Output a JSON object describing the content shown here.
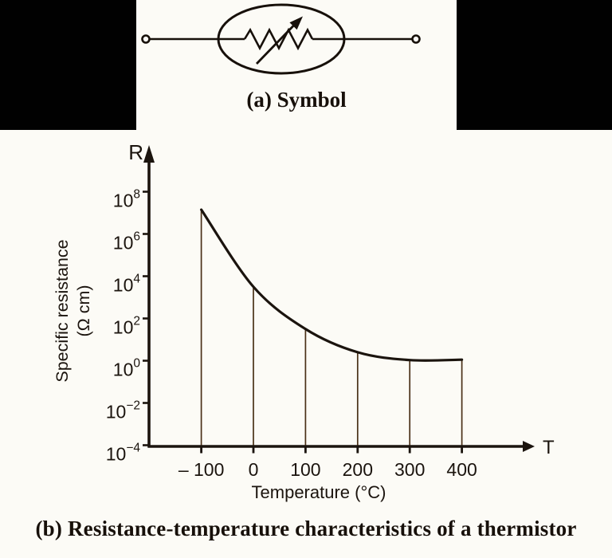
{
  "figure": {
    "background_color": "#fcfbf6",
    "panel_color": "#010101",
    "ink_color": "#1b140e",
    "symbol_caption": "(a) Symbol",
    "chart_caption": "(b) Resistance-temperature characteristics of a thermistor"
  },
  "symbol": {
    "name": "thermistor circuit symbol",
    "parts": [
      "left-terminal",
      "lead-wire",
      "ellipse-outline",
      "resistor-zigzag",
      "diagonal-arrow",
      "right-terminal"
    ]
  },
  "chart_data": {
    "type": "line",
    "scale": "semilog-y",
    "title": "Resistance-temperature characteristics of a thermistor",
    "xlabel": "Temperature (°C)",
    "ylabel": "Specific resistance (Ω cm)",
    "ylabel_line1": "Specific resistance",
    "ylabel_line2": "(Ω cm)",
    "x_axis_arrow_label": "T",
    "y_axis_arrow_label": "R",
    "x": [
      -100,
      0,
      100,
      200,
      300,
      400
    ],
    "y_log10": [
      7.15,
      3.5,
      1.5,
      0.4,
      0.03,
      0.05
    ],
    "y_approx_ohm_cm": [
      14000000,
      3200,
      32,
      2.5,
      1.07,
      1.1
    ],
    "x_tick_labels": [
      "– 100",
      "0",
      "100",
      "200",
      "300",
      "400"
    ],
    "x_tick_values": [
      -100,
      0,
      100,
      200,
      300,
      400
    ],
    "y_tick_base": "10",
    "y_tick_exponents": [
      8,
      6,
      4,
      2,
      0,
      -2,
      -4
    ],
    "xlim": [
      -200,
      495
    ],
    "ylim_log10": [
      -4,
      9.3
    ],
    "grid": false,
    "drop_lines_to_x_axis": true,
    "legend": "none",
    "curve_color": "#1b140e",
    "drop_line_color": "#4a3118"
  }
}
